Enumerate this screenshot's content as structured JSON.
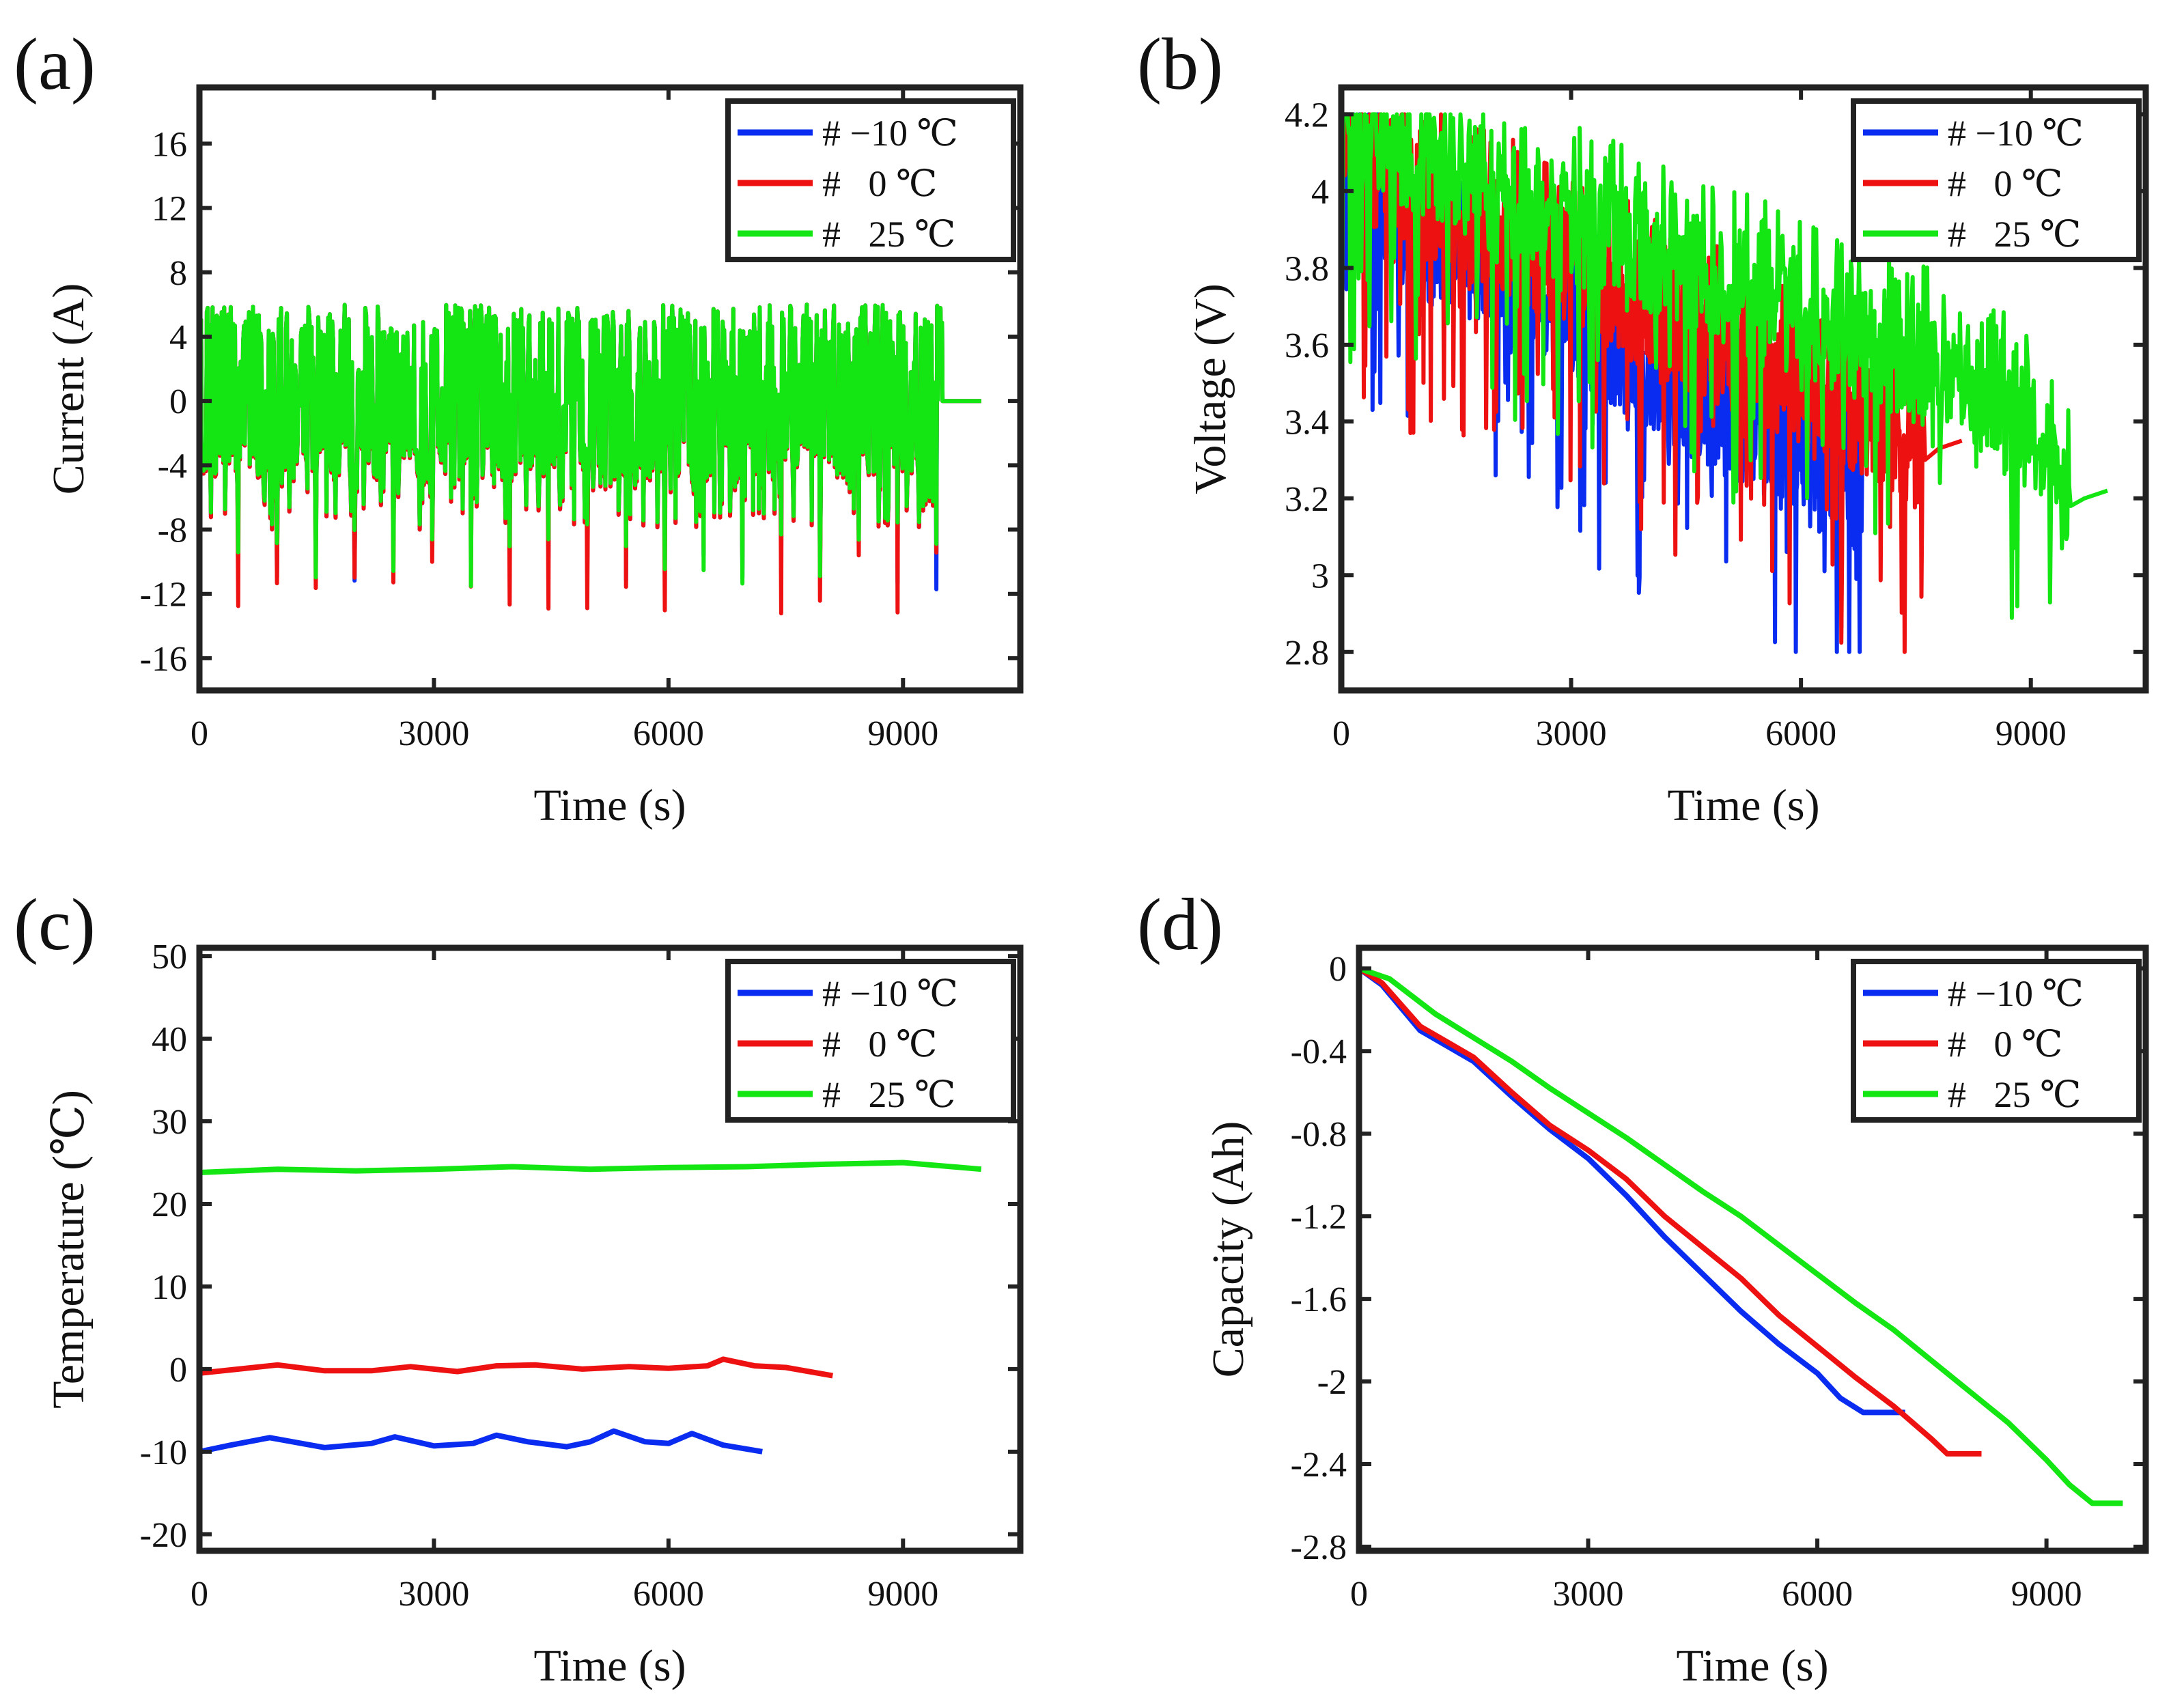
{
  "colors": {
    "m10": "#0a2cf0",
    "zero": "#ee1111",
    "p25": "#14e614",
    "axis": "#222222"
  },
  "legend": [
    "# −10 ℃",
    "#   0 ℃",
    "#   25 ℃"
  ],
  "chart_data": [
    {
      "id": "a",
      "type": "line",
      "panel_label": "(a)",
      "xlabel": "Time (s)",
      "ylabel": "Current (A)",
      "xlim": [
        0,
        10500
      ],
      "ylim": [
        -18,
        19.5
      ],
      "xticks": [
        0,
        3000,
        6000,
        9000
      ],
      "yticks": [
        -16,
        -12,
        -8,
        -4,
        0,
        4,
        8,
        12,
        16
      ],
      "ytick_labels": [
        "-16",
        "-12",
        "-8",
        "-4",
        "0",
        "4",
        "8",
        "12",
        "16"
      ],
      "kind": "current",
      "series": [
        {
          "name": "# −10 ℃",
          "end_time": 9500,
          "flat_to": 10000,
          "min_current": -12.0,
          "max_current": 6.0
        },
        {
          "name": "# 0 ℃",
          "end_time": 9500,
          "flat_to": 10000,
          "min_current": -13.5,
          "max_current": 6.0
        },
        {
          "name": "# 25 ℃",
          "end_time": 9500,
          "flat_to": 10000,
          "min_current": -12.0,
          "max_current": 6.0
        }
      ]
    },
    {
      "id": "b",
      "type": "line",
      "panel_label": "(b)",
      "xlabel": "Time (s)",
      "ylabel": "Voltage (V)",
      "xlim": [
        0,
        10500
      ],
      "ylim": [
        2.7,
        4.27
      ],
      "xticks": [
        0,
        3000,
        6000,
        9000
      ],
      "yticks": [
        2.8,
        3.0,
        3.2,
        3.4,
        3.6,
        3.8,
        4.0,
        4.2
      ],
      "ytick_labels": [
        "2.8",
        "3",
        "3.2",
        "3.4",
        "3.6",
        "3.8",
        "4",
        "4.2"
      ],
      "kind": "voltage",
      "series": [
        {
          "name": "# −10 ℃",
          "x": [
            0,
            1000,
            2000,
            3000,
            4000,
            5000,
            6000,
            6800
          ],
          "base": [
            4.05,
            3.86,
            3.78,
            3.66,
            3.52,
            3.4,
            3.28,
            3.2
          ],
          "min": 2.8,
          "max": 4.2
        },
        {
          "name": "# 0 ℃",
          "x": [
            0,
            1000,
            2000,
            3000,
            4000,
            5000,
            6000,
            7000,
            7600
          ],
          "base": [
            4.1,
            3.95,
            3.88,
            3.78,
            3.67,
            3.57,
            3.46,
            3.38,
            3.3
          ],
          "min": 2.8,
          "max": 4.2,
          "recovery": {
            "x": [
              7620,
              7800,
              8100
            ],
            "y": [
              3.3,
              3.33,
              3.35
            ]
          }
        },
        {
          "name": "# 25 ℃",
          "x": [
            0,
            1000,
            2000,
            3000,
            4000,
            5000,
            6000,
            7000,
            8000,
            9000,
            9500
          ],
          "base": [
            4.15,
            4.07,
            3.98,
            3.9,
            3.82,
            3.74,
            3.66,
            3.58,
            3.49,
            3.36,
            3.15
          ],
          "min": 2.86,
          "max": 4.2,
          "recovery": {
            "x": [
              9520,
              9700,
              10000
            ],
            "y": [
              3.18,
              3.2,
              3.22
            ]
          }
        }
      ]
    },
    {
      "id": "c",
      "type": "line",
      "panel_label": "(c)",
      "xlabel": "Time (s)",
      "ylabel": "Temperature (℃)",
      "xlim": [
        0,
        10500
      ],
      "ylim": [
        -22,
        51
      ],
      "xticks": [
        0,
        3000,
        6000,
        9000
      ],
      "yticks": [
        -20,
        -10,
        0,
        10,
        20,
        30,
        40,
        50
      ],
      "ytick_labels": [
        "-20",
        "-10",
        "0",
        "10",
        "20",
        "30",
        "40",
        "50"
      ],
      "kind": "line",
      "series": [
        {
          "name": "# −10 ℃",
          "x": [
            0,
            400,
            900,
            1600,
            2200,
            2500,
            3000,
            3500,
            3800,
            4200,
            4700,
            5000,
            5300,
            5700,
            6000,
            6300,
            6700,
            7200
          ],
          "y": [
            -10,
            -9.2,
            -8.3,
            -9.5,
            -9.0,
            -8.2,
            -9.3,
            -9.0,
            -8.0,
            -8.8,
            -9.4,
            -8.8,
            -7.5,
            -8.8,
            -9.0,
            -7.8,
            -9.2,
            -10.0
          ]
        },
        {
          "name": "# 0 ℃",
          "x": [
            0,
            500,
            1000,
            1600,
            2200,
            2700,
            3300,
            3800,
            4300,
            4900,
            5500,
            6000,
            6500,
            6700,
            7100,
            7500,
            8100
          ],
          "y": [
            -0.5,
            0.0,
            0.5,
            -0.2,
            -0.2,
            0.3,
            -0.3,
            0.4,
            0.5,
            0.0,
            0.3,
            0.1,
            0.4,
            1.2,
            0.4,
            0.2,
            -0.8
          ]
        },
        {
          "name": "# 25 ℃",
          "x": [
            0,
            1000,
            2000,
            3000,
            4000,
            5000,
            6000,
            7000,
            8000,
            9000,
            9500,
            10000
          ],
          "y": [
            23.8,
            24.2,
            24.0,
            24.2,
            24.5,
            24.2,
            24.4,
            24.5,
            24.8,
            25.0,
            24.6,
            24.2
          ]
        }
      ]
    },
    {
      "id": "d",
      "type": "line",
      "panel_label": "(d)",
      "xlabel": "Time (s)",
      "ylabel": "Capacity (Ah)",
      "xlim": [
        0,
        10300
      ],
      "ylim": [
        -2.82,
        0.1
      ],
      "xticks": [
        0,
        3000,
        6000,
        9000
      ],
      "yticks": [
        -2.8,
        -2.4,
        -2.0,
        -1.6,
        -1.2,
        -0.8,
        -0.4,
        0
      ],
      "ytick_labels": [
        "-2.8",
        "-2.4",
        "-2",
        "-1.6",
        "-1.2",
        "-0.8",
        "-0.4",
        "0"
      ],
      "kind": "line",
      "series": [
        {
          "name": "# −10 ℃",
          "x": [
            0,
            300,
            800,
            1500,
            2000,
            2500,
            3000,
            3500,
            4000,
            4500,
            5000,
            5500,
            6000,
            6300,
            6600,
            7150
          ],
          "y": [
            0,
            -0.08,
            -0.3,
            -0.45,
            -0.62,
            -0.78,
            -0.92,
            -1.1,
            -1.3,
            -1.48,
            -1.66,
            -1.82,
            -1.96,
            -2.08,
            -2.15,
            -2.15
          ]
        },
        {
          "name": "# 0 ℃",
          "x": [
            0,
            300,
            800,
            1500,
            2000,
            2500,
            3000,
            3500,
            4000,
            4500,
            5000,
            5500,
            6000,
            6500,
            7000,
            7500,
            7700,
            8150
          ],
          "y": [
            0,
            -0.07,
            -0.28,
            -0.43,
            -0.6,
            -0.76,
            -0.88,
            -1.02,
            -1.2,
            -1.35,
            -1.5,
            -1.68,
            -1.83,
            -1.98,
            -2.12,
            -2.28,
            -2.35,
            -2.35
          ]
        },
        {
          "name": "# 25 ℃",
          "x": [
            0,
            400,
            1000,
            2000,
            2500,
            3000,
            3500,
            4000,
            4500,
            5000,
            5500,
            6000,
            6500,
            7000,
            7500,
            8000,
            8500,
            9000,
            9300,
            9600,
            10000
          ],
          "y": [
            0,
            -0.05,
            -0.22,
            -0.45,
            -0.58,
            -0.7,
            -0.82,
            -0.95,
            -1.08,
            -1.2,
            -1.34,
            -1.48,
            -1.62,
            -1.75,
            -1.9,
            -2.05,
            -2.2,
            -2.38,
            -2.5,
            -2.59,
            -2.59
          ]
        }
      ]
    }
  ]
}
